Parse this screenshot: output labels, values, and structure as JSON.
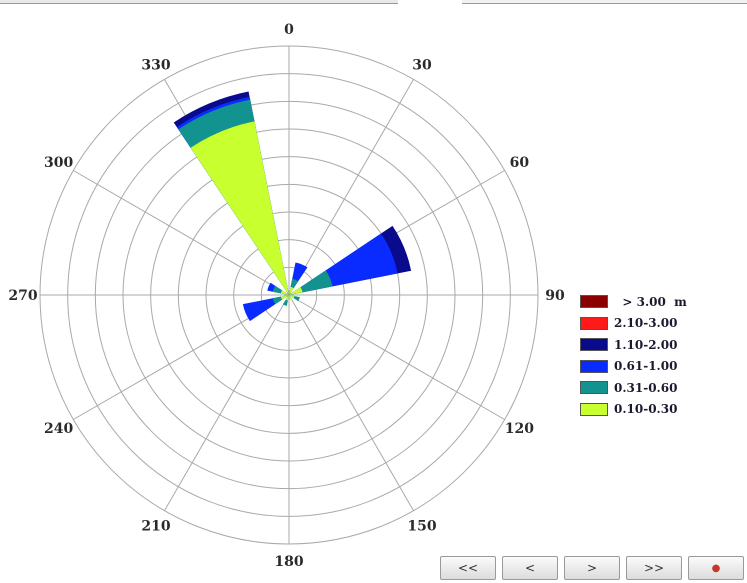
{
  "chart_data": {
    "type": "wind-rose",
    "directions": [
      "0",
      "30",
      "60",
      "90",
      "120",
      "150",
      "180",
      "210",
      "240",
      "270",
      "300",
      "330"
    ],
    "rings": 9,
    "legend": [
      {
        "label": "  > 3.00  m",
        "color": "#8b0000"
      },
      {
        "label": "2.10-3.00",
        "color": "#ff1a1a"
      },
      {
        "label": "1.10-2.00",
        "color": "#0a0a8c"
      },
      {
        "label": "0.61-1.00",
        "color": "#0a2bff"
      },
      {
        "label": "0.31-0.60",
        "color": "#12938f"
      },
      {
        "label": "0.10-0.30",
        "color": "#c8ff2e"
      }
    ],
    "sectors": [
      {
        "direction": 337.5,
        "bins": [
          {
            "class": "0.10-0.30",
            "extent": 6.4
          },
          {
            "class": "0.31-0.60",
            "extent": 7.2
          },
          {
            "class": "0.61-1.00",
            "extent": 7.3
          },
          {
            "class": "1.10-2.00",
            "extent": 7.5
          }
        ]
      },
      {
        "direction": 22.5,
        "bins": [
          {
            "class": "0.10-0.30",
            "extent": 0.3
          },
          {
            "class": "0.31-0.60",
            "extent": 0.6
          },
          {
            "class": "0.61-1.00",
            "extent": 1.2
          }
        ]
      },
      {
        "direction": 67.5,
        "bins": [
          {
            "class": "0.10-0.30",
            "extent": 0.5
          },
          {
            "class": "0.31-0.60",
            "extent": 1.6
          },
          {
            "class": "0.61-1.00",
            "extent": 4.0
          },
          {
            "class": "1.10-2.00",
            "extent": 4.5
          }
        ]
      },
      {
        "direction": 112.5,
        "bins": [
          {
            "class": "0.10-0.30",
            "extent": 0.2
          },
          {
            "class": "0.31-0.60",
            "extent": 0.4
          }
        ]
      },
      {
        "direction": 157.5,
        "bins": [
          {
            "class": "0.10-0.30",
            "extent": 0.2
          }
        ]
      },
      {
        "direction": 202.5,
        "bins": [
          {
            "class": "0.10-0.30",
            "extent": 0.2
          },
          {
            "class": "0.31-0.60",
            "extent": 0.4
          }
        ]
      },
      {
        "direction": 247.5,
        "bins": [
          {
            "class": "0.10-0.30",
            "extent": 0.3
          },
          {
            "class": "0.31-0.60",
            "extent": 0.6
          },
          {
            "class": "0.61-1.00",
            "extent": 1.7
          }
        ]
      },
      {
        "direction": 292.5,
        "bins": [
          {
            "class": "0.10-0.30",
            "extent": 0.3
          },
          {
            "class": "0.31-0.60",
            "extent": 0.6
          },
          {
            "class": "0.61-1.00",
            "extent": 0.8
          }
        ]
      }
    ]
  },
  "nav": {
    "first": "<<",
    "prev": "<",
    "next": ">",
    "last": ">>",
    "stop": "●"
  }
}
